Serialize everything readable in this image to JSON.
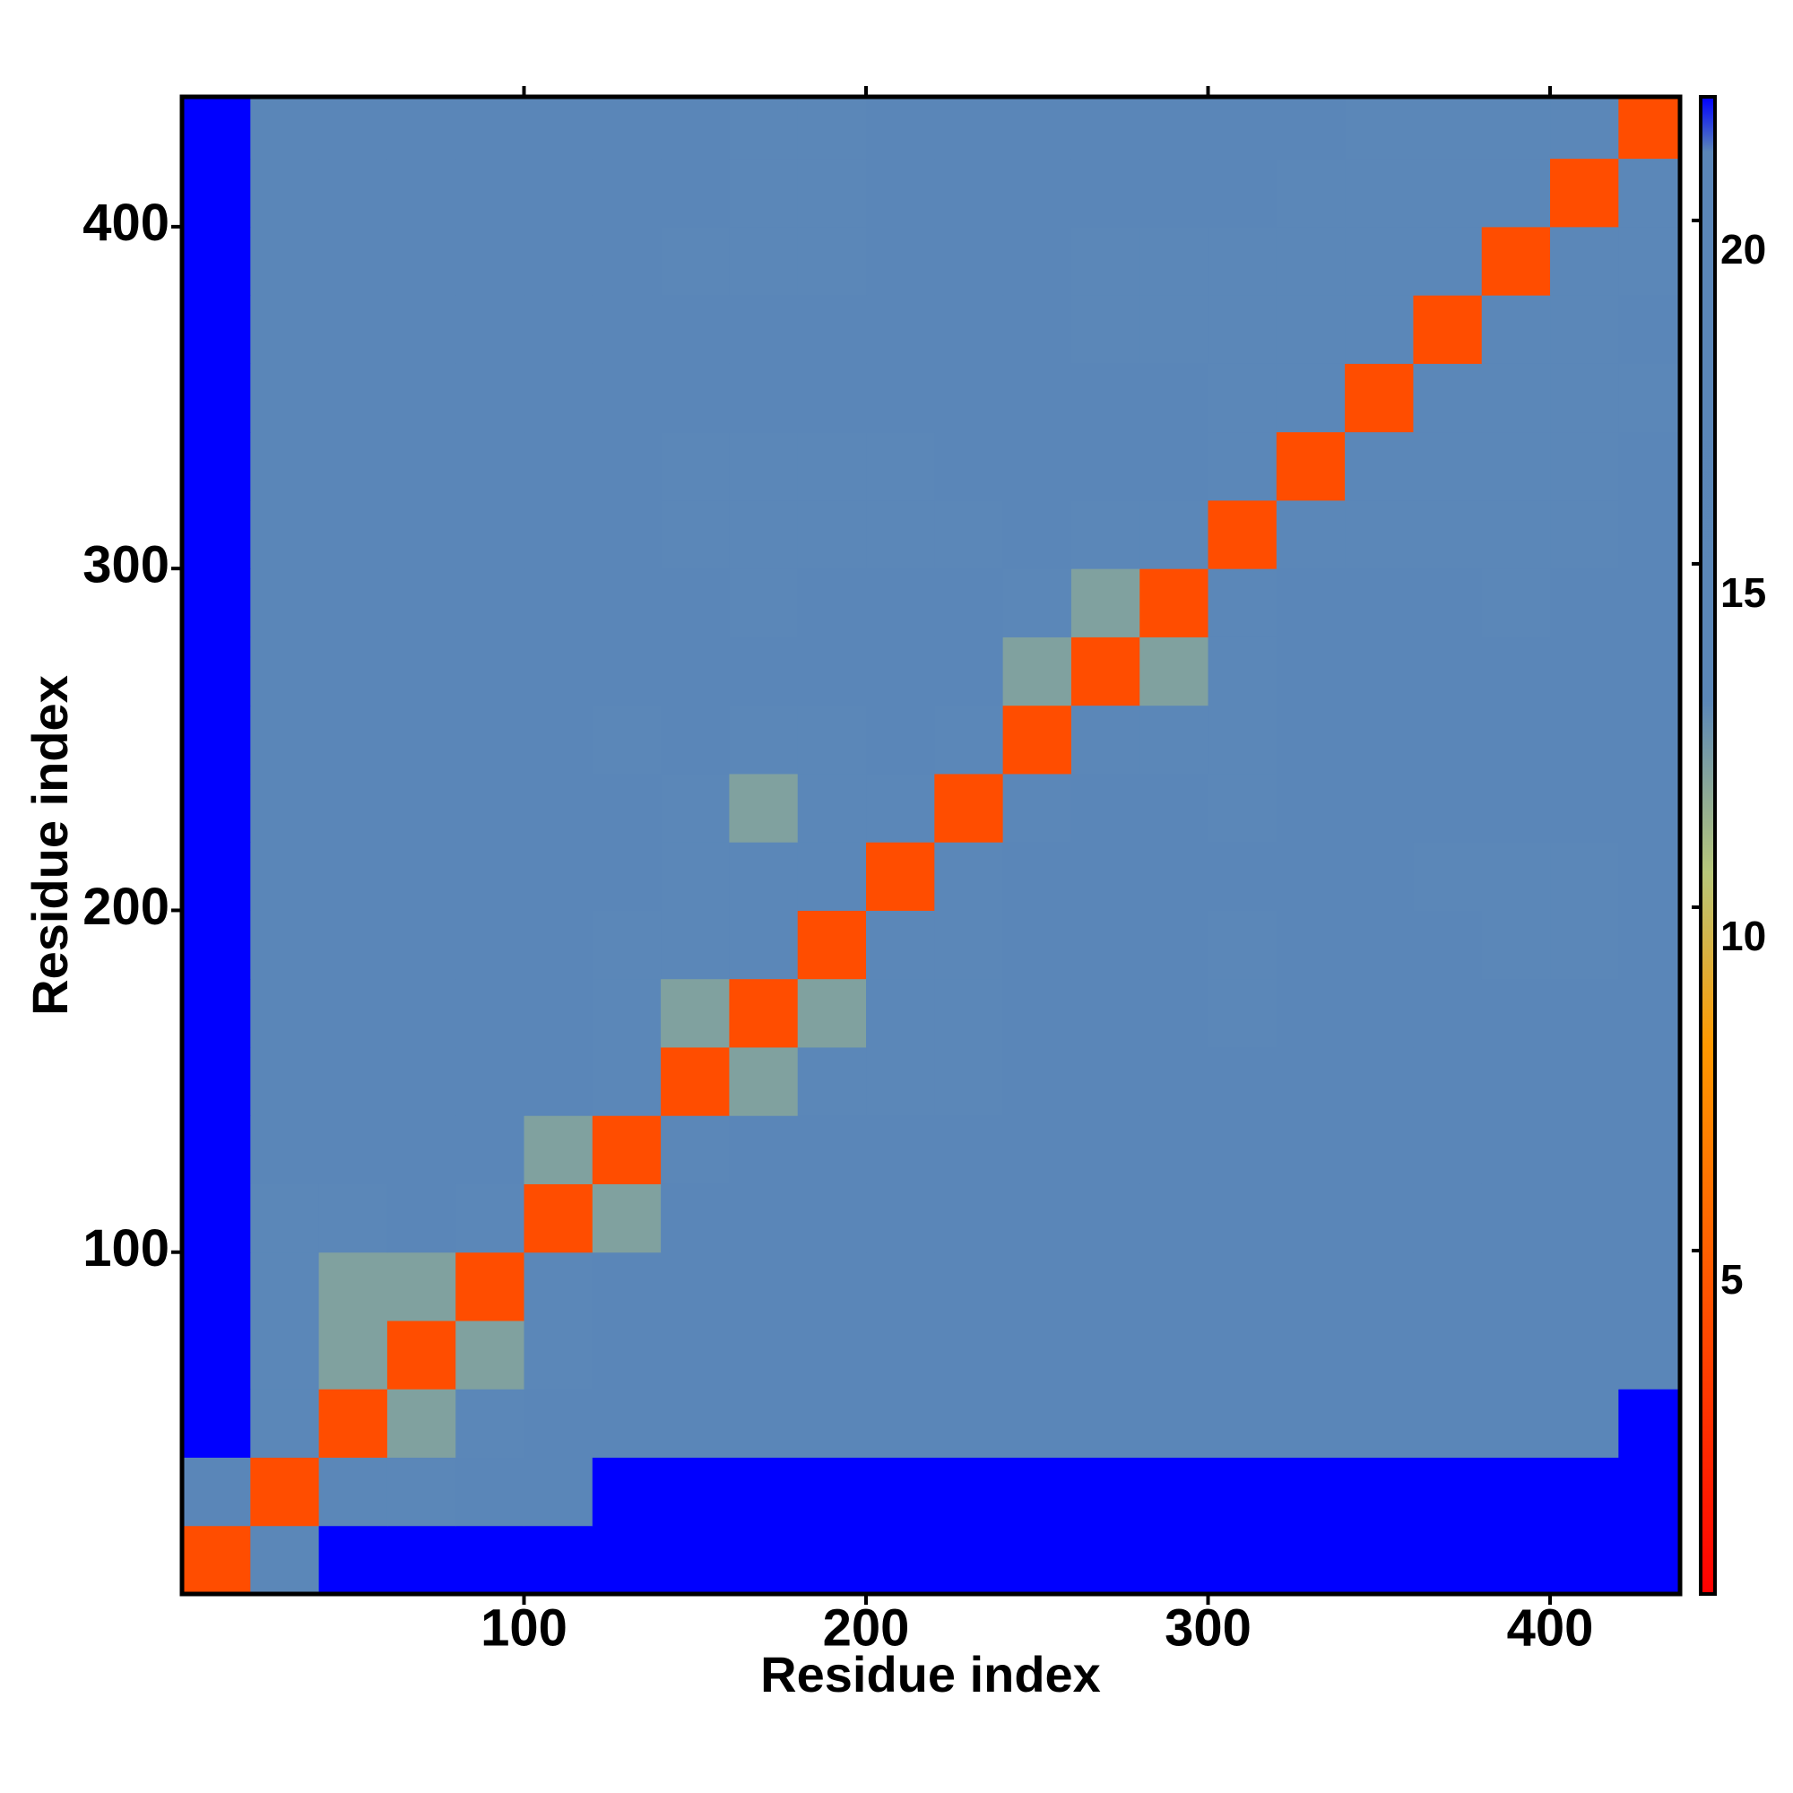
{
  "chart_data": {
    "type": "heatmap",
    "x_label": "Residue index",
    "y_label": "Residue index",
    "xlim": [
      0,
      438
    ],
    "ylim": [
      0,
      438
    ],
    "xticks": [
      100,
      200,
      300,
      400
    ],
    "yticks": [
      100,
      200,
      300,
      400
    ],
    "bins": [
      0,
      20,
      40,
      60,
      80,
      100,
      120,
      140,
      160,
      180,
      200,
      220,
      240,
      260,
      280,
      300,
      320,
      340,
      360,
      380,
      400,
      420,
      438
    ],
    "z": [
      [
        4,
        16,
        21.8,
        21.8,
        21.8,
        21.8,
        21.8,
        21.8,
        21.8,
        21.8,
        21.8,
        21.8,
        21.8,
        21.8,
        21.8,
        21.8,
        21.8,
        21.8,
        21.8,
        21.8,
        21.8,
        21.8
      ],
      [
        20,
        4,
        13,
        16,
        18,
        20,
        21.8,
        21.8,
        21.8,
        21.8,
        21.8,
        21.8,
        21.8,
        21.8,
        21.8,
        21.8,
        21.8,
        21.8,
        21.8,
        21.8,
        21.8,
        21.8
      ],
      [
        21.8,
        14,
        4,
        12,
        14,
        18,
        20,
        20,
        20,
        20,
        20,
        20,
        20,
        20,
        20,
        20,
        20,
        20,
        20,
        20,
        20,
        21.8
      ],
      [
        21.8,
        14,
        12,
        4,
        12,
        17,
        19,
        20,
        20.5,
        20.5,
        20.5,
        20.5,
        20.5,
        20.5,
        20.5,
        20.5,
        20.5,
        20.5,
        20.5,
        20.5,
        20.5,
        21
      ],
      [
        21.8,
        13,
        12,
        12,
        4,
        13,
        18,
        19,
        19.5,
        19.5,
        19.5,
        19.5,
        19.5,
        19.5,
        20.5,
        20.5,
        20.5,
        20.5,
        20.5,
        20.5,
        20.5,
        21
      ],
      [
        21.8,
        15,
        17,
        18,
        13,
        4,
        12,
        18,
        19,
        19,
        19,
        19,
        19,
        19,
        20.5,
        20.5,
        20.5,
        20.5,
        20.5,
        20.5,
        20.5,
        21
      ],
      [
        21.8,
        19,
        19,
        19,
        18,
        12,
        4,
        13,
        18,
        19,
        19,
        19,
        19,
        19,
        21,
        21,
        21,
        21,
        21,
        21,
        21,
        21
      ],
      [
        21.8,
        21,
        19,
        19,
        19,
        19,
        13,
        4,
        12,
        17,
        15,
        16,
        18,
        18,
        18,
        18,
        18,
        18,
        18,
        18,
        18,
        18
      ],
      [
        21.8,
        20,
        19,
        18,
        19,
        19,
        17,
        12,
        4,
        12,
        17,
        14,
        18,
        18,
        19,
        16,
        18,
        18,
        18,
        18,
        18,
        18
      ],
      [
        21.8,
        20,
        19,
        19,
        19,
        18,
        17,
        16,
        13,
        4,
        13,
        15,
        18,
        18,
        18,
        16,
        18,
        18,
        18,
        16,
        16,
        18
      ],
      [
        21.8,
        19,
        19,
        19,
        19,
        19,
        18,
        16,
        15,
        13,
        4,
        14,
        18,
        18,
        18,
        18,
        18,
        18,
        17,
        15,
        15,
        18
      ],
      [
        21.8,
        19,
        19,
        19,
        19,
        19,
        18,
        15,
        12,
        14,
        13,
        4,
        14,
        18,
        18,
        17,
        18,
        18,
        18,
        18,
        18,
        18
      ],
      [
        21.8,
        19,
        19,
        19,
        19,
        19,
        17,
        18,
        15,
        15,
        18,
        14,
        4,
        13,
        17,
        17,
        18,
        18,
        18,
        18,
        18,
        18
      ],
      [
        21.8,
        20,
        19.5,
        19.5,
        19.5,
        19.5,
        18,
        18,
        18,
        18,
        18,
        18,
        12,
        4,
        12,
        16,
        18,
        18,
        18,
        18,
        18,
        18
      ],
      [
        21.8,
        20,
        20,
        20,
        20,
        20,
        18,
        18,
        17,
        18,
        18,
        18,
        16,
        12,
        4,
        15,
        18,
        18,
        18,
        16,
        18,
        18
      ],
      [
        21.8,
        20,
        20,
        20,
        20,
        20,
        18,
        16,
        16,
        16,
        17,
        17,
        18,
        17,
        15,
        4,
        14,
        16,
        16,
        16,
        17,
        18
      ],
      [
        21.8,
        20,
        20.5,
        20.5,
        20.5,
        20.5,
        18,
        17,
        15,
        17,
        17,
        18,
        18,
        18,
        18,
        13,
        4,
        13,
        14,
        15,
        17,
        18
      ],
      [
        21.8,
        21,
        20.5,
        20.5,
        20.5,
        20.5,
        18,
        18,
        18,
        18,
        18,
        18,
        18,
        18,
        18,
        17,
        13,
        4,
        14,
        16,
        17,
        16
      ],
      [
        21.8,
        21,
        20.5,
        21,
        20.5,
        20,
        18,
        18,
        18,
        18,
        18,
        18,
        18,
        16,
        16,
        16,
        16,
        14,
        4,
        14,
        17,
        18
      ],
      [
        21.8,
        20,
        20,
        20,
        19,
        20,
        18,
        17,
        16,
        17,
        18,
        18,
        18,
        17,
        16,
        15,
        14,
        16,
        13,
        4,
        13,
        17
      ],
      [
        21.8,
        21,
        20.5,
        20.5,
        21,
        20.5,
        18,
        18,
        16,
        17,
        18,
        19,
        18,
        18,
        18,
        18,
        16,
        16,
        16,
        14,
        4,
        13
      ],
      [
        21.8,
        21,
        20.5,
        20.5,
        21,
        20,
        18,
        18,
        16,
        17,
        18,
        18,
        18,
        18,
        18,
        18,
        18,
        16,
        16,
        17,
        13,
        4
      ]
    ],
    "clim": [
      0,
      21.8
    ],
    "cticks": [
      5,
      10,
      15,
      20
    ],
    "colorscale": [
      [
        0,
        "#ff0000"
      ],
      [
        8,
        "#ff9900"
      ],
      [
        10.5,
        "#b8c77a"
      ],
      [
        13,
        "#5b87b8"
      ],
      [
        21,
        "#5a86b8"
      ],
      [
        21.8,
        "#0000ff"
      ]
    ]
  }
}
